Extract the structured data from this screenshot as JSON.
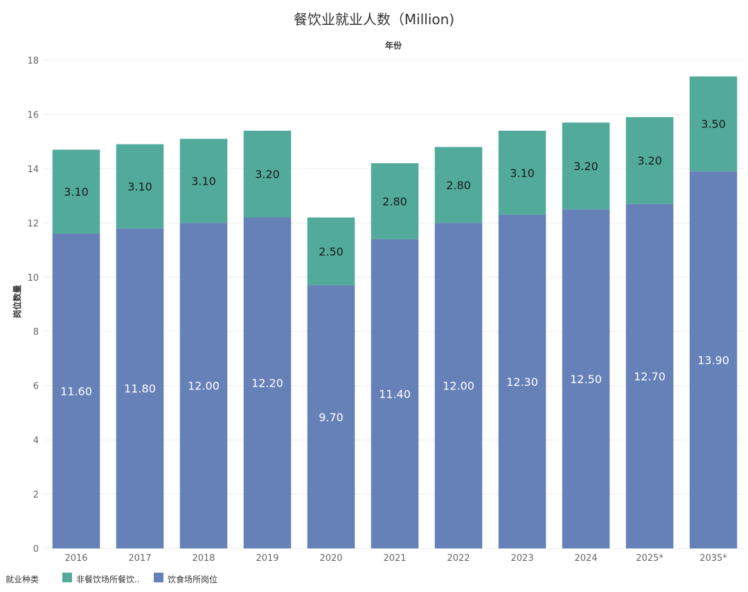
{
  "chart_data": {
    "type": "bar",
    "stacked": true,
    "title": "餐饮业就业人数（Million)",
    "xlabel": "年份",
    "ylabel": "岗位数量",
    "ylim": [
      0,
      18
    ],
    "yticks": [
      "0",
      "2",
      "4",
      "6",
      "8",
      "10",
      "12",
      "14",
      "16",
      "18"
    ],
    "grid": true,
    "categories": [
      "2016",
      "2017",
      "2018",
      "2019",
      "2020",
      "2021",
      "2022",
      "2023",
      "2024",
      "2025*",
      "2035*"
    ],
    "series": [
      {
        "name": "饮食场所岗位",
        "color": "#6680b8",
        "values": [
          11.6,
          11.8,
          12.0,
          12.2,
          9.7,
          11.4,
          12.0,
          12.3,
          12.5,
          12.7,
          13.9
        ],
        "labels": [
          "11.60",
          "11.80",
          "12.00",
          "12.20",
          "9.70",
          "11.40",
          "12.00",
          "12.30",
          "12.50",
          "12.70",
          "13.90"
        ]
      },
      {
        "name": "非餐饮场所餐饮..",
        "color": "#52aa9a",
        "values": [
          3.1,
          3.1,
          3.1,
          3.2,
          2.5,
          2.8,
          2.8,
          3.1,
          3.2,
          3.2,
          3.5
        ],
        "labels": [
          "3.10",
          "3.10",
          "3.10",
          "3.20",
          "2.50",
          "2.80",
          "2.80",
          "3.10",
          "3.20",
          "3.20",
          "3.50"
        ]
      }
    ],
    "legend": {
      "title": "就业种类",
      "position": "bottom-left",
      "items": [
        "非餐饮场所餐饮..",
        "饮食场所岗位"
      ]
    }
  }
}
